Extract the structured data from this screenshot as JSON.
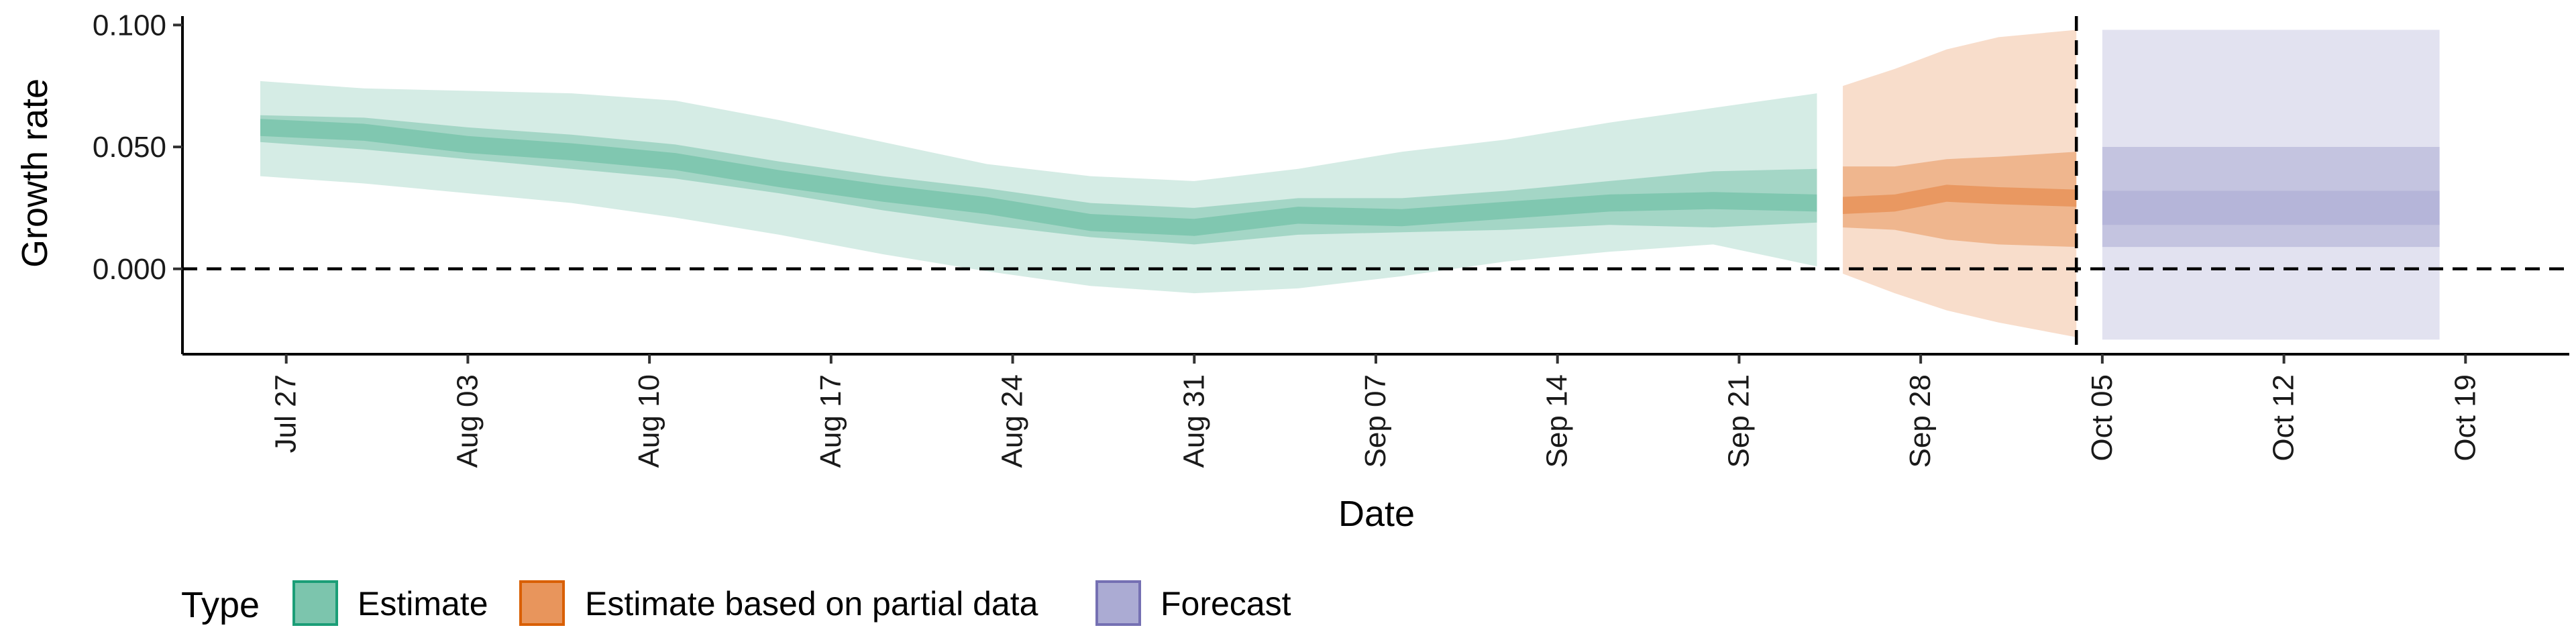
{
  "chart_data": {
    "type": "area",
    "xlabel": "Date",
    "ylabel": "Growth rate",
    "ylim": [
      -0.035,
      0.102
    ],
    "xlim": [
      "2020-07-23",
      "2020-10-23"
    ],
    "y_ticks": [
      0.0,
      0.05,
      0.1
    ],
    "y_tick_labels": [
      "0.000",
      "0.050",
      "0.100"
    ],
    "x_ticks": [
      "2020-07-27",
      "2020-08-03",
      "2020-08-10",
      "2020-08-17",
      "2020-08-24",
      "2020-08-31",
      "2020-09-07",
      "2020-09-14",
      "2020-09-21",
      "2020-09-28",
      "2020-10-05",
      "2020-10-12",
      "2020-10-19"
    ],
    "x_tick_labels": [
      "Jul 27",
      "Aug 03",
      "Aug 10",
      "Aug 17",
      "Aug 24",
      "Aug 31",
      "Sep 07",
      "Sep 14",
      "Sep 21",
      "Sep 28",
      "Oct 05",
      "Oct 12",
      "Oct 19"
    ],
    "hline_y": 0,
    "vline_x": "2020-10-04",
    "grid": false,
    "legend": {
      "title": "Type",
      "placement": "bottom-left",
      "entries": [
        "Estimate",
        "Estimate based on partial data",
        "Forecast"
      ]
    },
    "series": [
      {
        "name": "Estimate",
        "color": "#7cc5ad",
        "x": [
          "2020-07-26",
          "2020-07-30",
          "2020-08-03",
          "2020-08-07",
          "2020-08-11",
          "2020-08-15",
          "2020-08-19",
          "2020-08-23",
          "2020-08-27",
          "2020-08-31",
          "2020-09-04",
          "2020-09-08",
          "2020-09-12",
          "2020-09-16",
          "2020-09-20",
          "2020-09-24"
        ],
        "median": [
          0.058,
          0.056,
          0.051,
          0.048,
          0.044,
          0.037,
          0.031,
          0.026,
          0.019,
          0.017,
          0.022,
          0.021,
          0.024,
          0.027,
          0.028,
          0.027
        ],
        "lower_50": [
          0.052,
          0.049,
          0.045,
          0.041,
          0.037,
          0.031,
          0.024,
          0.018,
          0.013,
          0.01,
          0.014,
          0.015,
          0.016,
          0.018,
          0.017,
          0.019
        ],
        "upper_50": [
          0.063,
          0.062,
          0.058,
          0.055,
          0.051,
          0.044,
          0.038,
          0.033,
          0.027,
          0.025,
          0.029,
          0.029,
          0.032,
          0.036,
          0.04,
          0.041
        ],
        "lower_90": [
          0.038,
          0.035,
          0.031,
          0.027,
          0.021,
          0.014,
          0.006,
          -0.001,
          -0.007,
          -0.01,
          -0.008,
          -0.003,
          0.003,
          0.007,
          0.01,
          0.001
        ],
        "upper_90": [
          0.077,
          0.074,
          0.073,
          0.072,
          0.069,
          0.061,
          0.052,
          0.043,
          0.038,
          0.036,
          0.041,
          0.048,
          0.053,
          0.06,
          0.066,
          0.072
        ]
      },
      {
        "name": "Estimate based on partial data",
        "color": "#e8955c",
        "x": [
          "2020-09-25",
          "2020-09-27",
          "2020-09-29",
          "2020-10-01",
          "2020-10-04"
        ],
        "median": [
          0.026,
          0.027,
          0.031,
          0.03,
          0.029
        ],
        "lower_50": [
          0.017,
          0.016,
          0.012,
          0.01,
          0.009
        ],
        "upper_50": [
          0.042,
          0.042,
          0.045,
          0.046,
          0.048
        ],
        "lower_90": [
          -0.002,
          -0.01,
          -0.017,
          -0.022,
          -0.028
        ],
        "upper_90": [
          0.075,
          0.082,
          0.09,
          0.095,
          0.098
        ]
      },
      {
        "name": "Forecast",
        "color": "#ababd3",
        "x": [
          "2020-10-05",
          "2020-10-18"
        ],
        "median": [
          0.025,
          0.025
        ],
        "lower_50": [
          0.018,
          0.018
        ],
        "upper_50": [
          0.032,
          0.032
        ],
        "lower_90": [
          -0.029,
          -0.029
        ],
        "upper_90": [
          0.098,
          0.098
        ],
        "lower_75": [
          0.009,
          0.009
        ],
        "upper_75": [
          0.05,
          0.05
        ]
      }
    ]
  }
}
